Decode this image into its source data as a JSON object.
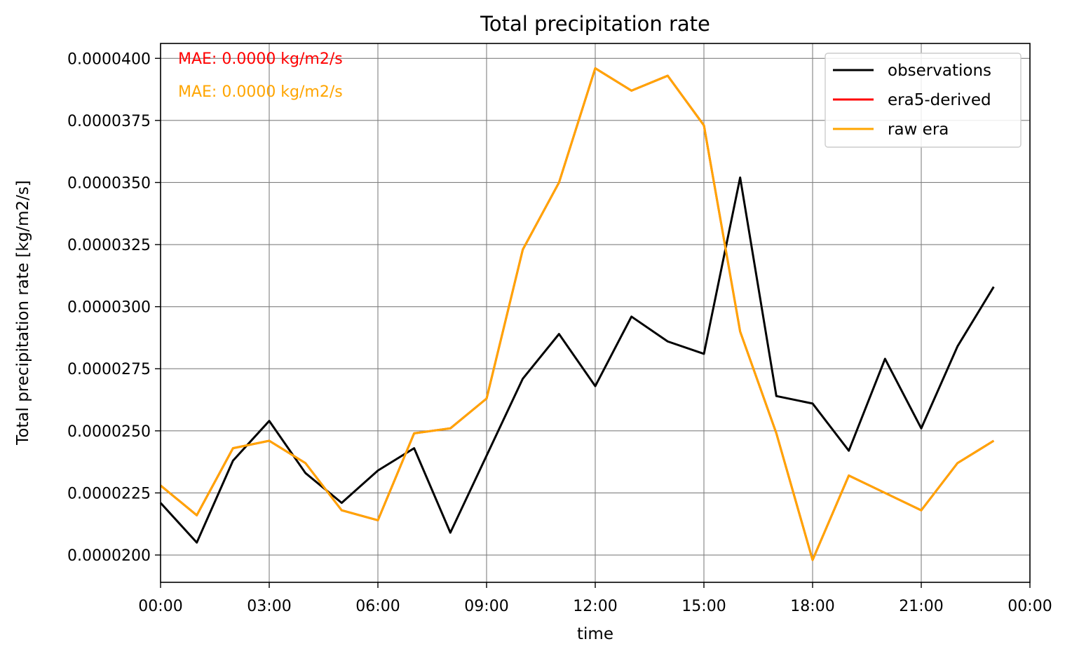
{
  "chart_data": {
    "type": "line",
    "title": "Total precipitation rate",
    "xlabel": "time",
    "ylabel": "Total precipitation rate [kg/m2/s]",
    "x": [
      "00:00",
      "01:00",
      "02:00",
      "03:00",
      "04:00",
      "05:00",
      "06:00",
      "07:00",
      "08:00",
      "09:00",
      "10:00",
      "11:00",
      "12:00",
      "13:00",
      "14:00",
      "15:00",
      "16:00",
      "17:00",
      "18:00",
      "19:00",
      "20:00",
      "21:00",
      "22:00",
      "23:00"
    ],
    "xlim": [
      0,
      24
    ],
    "x_ticks": [
      0,
      3,
      6,
      9,
      12,
      15,
      18,
      21,
      24
    ],
    "x_tick_labels": [
      "00:00",
      "03:00",
      "06:00",
      "09:00",
      "12:00",
      "15:00",
      "18:00",
      "21:00",
      "00:00"
    ],
    "ylim": [
      1.89e-05,
      4.06e-05
    ],
    "y_ticks": [
      2e-05,
      2.25e-05,
      2.5e-05,
      2.75e-05,
      3e-05,
      3.25e-05,
      3.5e-05,
      3.75e-05,
      4e-05
    ],
    "y_tick_labels": [
      "0.0000200",
      "0.0000225",
      "0.0000250",
      "0.0000275",
      "0.0000300",
      "0.0000325",
      "0.0000350",
      "0.0000375",
      "0.0000400"
    ],
    "grid": true,
    "legend_position": "upper right",
    "series": [
      {
        "name": "observations",
        "color": "#000000",
        "values": [
          2.21e-05,
          2.05e-05,
          2.38e-05,
          2.54e-05,
          2.33e-05,
          2.21e-05,
          2.34e-05,
          2.43e-05,
          2.09e-05,
          2.4e-05,
          2.71e-05,
          2.89e-05,
          2.68e-05,
          2.96e-05,
          2.86e-05,
          2.81e-05,
          3.52e-05,
          2.64e-05,
          2.61e-05,
          2.42e-05,
          2.79e-05,
          2.51e-05,
          2.84e-05,
          3.08e-05
        ]
      },
      {
        "name": "era5-derived",
        "color": "#ff0000",
        "values": [
          2.28e-05,
          2.16e-05,
          2.43e-05,
          2.46e-05,
          2.37e-05,
          2.18e-05,
          2.14e-05,
          2.49e-05,
          2.51e-05,
          2.63e-05,
          3.23e-05,
          3.5e-05,
          3.96e-05,
          3.87e-05,
          3.93e-05,
          3.73e-05,
          2.9e-05,
          2.49e-05,
          1.98e-05,
          2.32e-05,
          2.25e-05,
          2.18e-05,
          2.37e-05,
          2.46e-05
        ]
      },
      {
        "name": "raw era",
        "color": "#ffa500",
        "values": [
          2.28e-05,
          2.16e-05,
          2.43e-05,
          2.46e-05,
          2.37e-05,
          2.18e-05,
          2.14e-05,
          2.49e-05,
          2.51e-05,
          2.63e-05,
          3.23e-05,
          3.5e-05,
          3.96e-05,
          3.87e-05,
          3.93e-05,
          3.73e-05,
          2.9e-05,
          2.49e-05,
          1.98e-05,
          2.32e-05,
          2.25e-05,
          2.18e-05,
          2.37e-05,
          2.46e-05
        ]
      }
    ],
    "annotations": [
      {
        "text": "MAE: 0.0000 kg/m2/s",
        "color": "#ff0000"
      },
      {
        "text": "MAE: 0.0000 kg/m2/s",
        "color": "#ffa500"
      }
    ]
  }
}
